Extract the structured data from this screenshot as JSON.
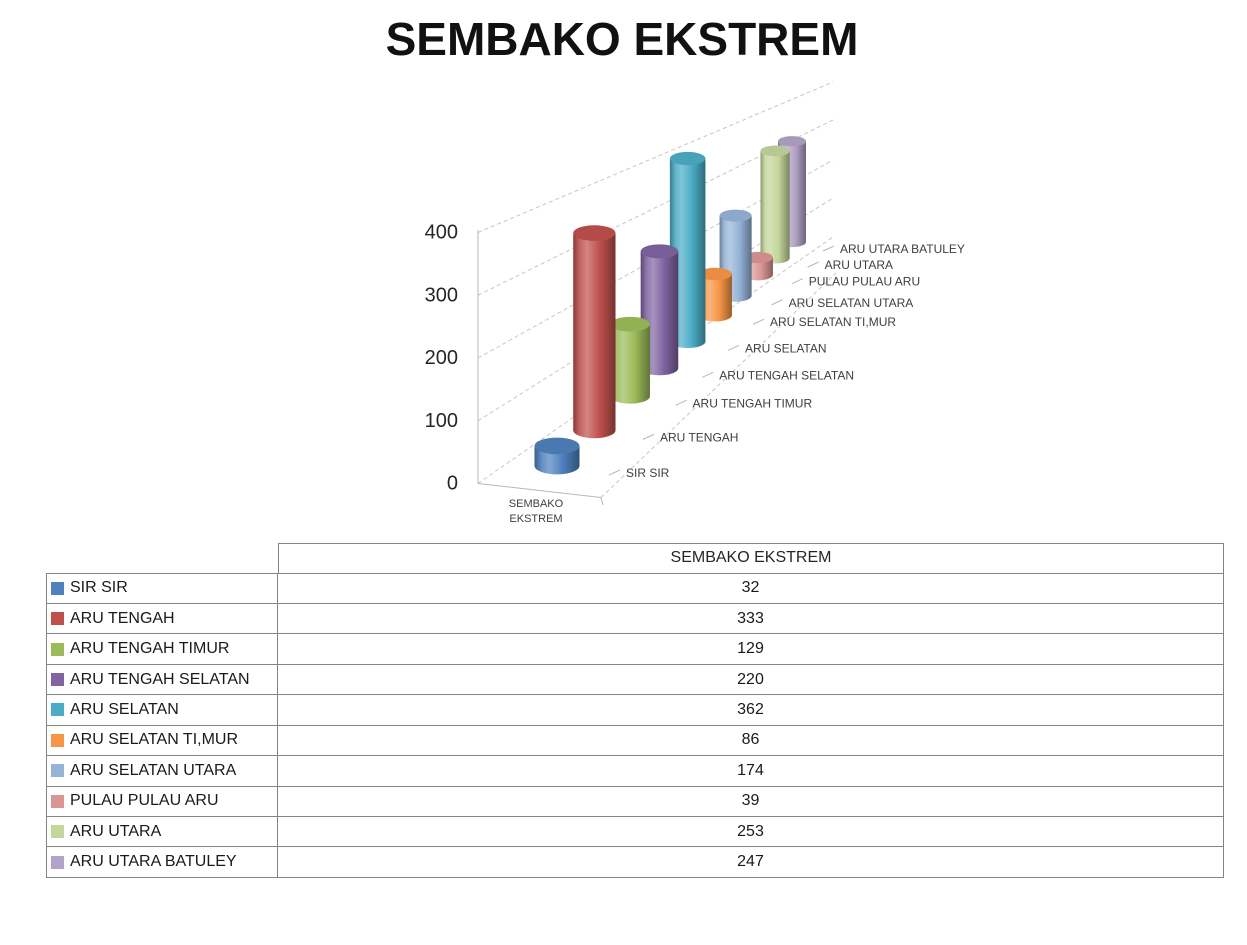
{
  "title": "SEMBAKO EKSTREM",
  "chart_data": {
    "type": "bar",
    "style": "3d-cylinder-perspective",
    "title": "SEMBAKO EKSTREM",
    "series_name": "SEMBAKO EKSTREM",
    "categories": [
      "SIR SIR",
      "ARU TENGAH",
      "ARU TENGAH TIMUR",
      "ARU TENGAH SELATAN",
      "ARU SELATAN",
      "ARU SELATAN TI,MUR",
      "ARU SELATAN UTARA",
      "PULAU PULAU ARU",
      "ARU UTARA",
      "ARU UTARA BATULEY"
    ],
    "values": [
      32,
      333,
      129,
      220,
      362,
      86,
      174,
      39,
      253,
      247
    ],
    "colors": [
      "#4F81BD",
      "#C0504D",
      "#9BBB59",
      "#8064A2",
      "#4BACC6",
      "#F79646",
      "#95B3D7",
      "#D99694",
      "#C3D69B",
      "#B3A2C7"
    ],
    "xlabel": "SEMBAKO EKSTREM",
    "ylabel": "",
    "ylim": [
      0,
      400
    ],
    "y_ticks": [
      0,
      100,
      200,
      300,
      400
    ],
    "grid": true,
    "grid_style": "dashed",
    "legend_position": "table-left"
  },
  "data_table": {
    "column_header": "SEMBAKO EKSTREM"
  }
}
